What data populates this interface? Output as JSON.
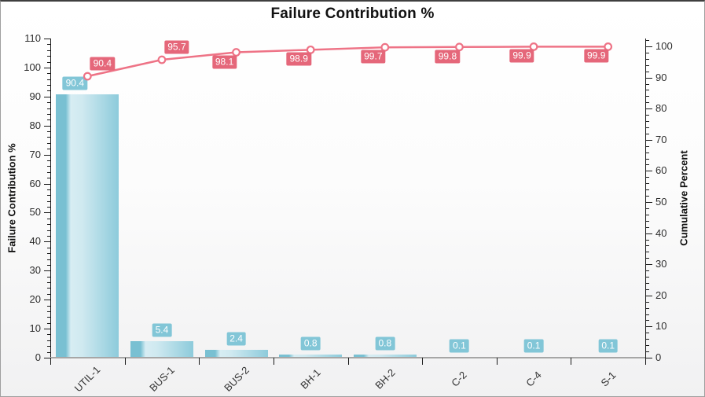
{
  "chart_data": {
    "type": "bar",
    "subtype": "pareto (bars + cumulative line)",
    "title": "Failure Contribution %",
    "categories": [
      "UTIL-1",
      "BUS-1",
      "BUS-2",
      "BH-1",
      "BH-2",
      "C-2",
      "C-4",
      "S-1"
    ],
    "series": [
      {
        "name": "Failure Contribution %",
        "type": "bar",
        "axis": "left",
        "values": [
          90.4,
          5.4,
          2.4,
          0.8,
          0.8,
          0.1,
          0.1,
          0.1
        ],
        "data_labels": [
          "90.4",
          "5.4",
          "2.4",
          "0.8",
          "0.8",
          "0.1",
          "0.1",
          "0.1"
        ]
      },
      {
        "name": "Cumulative Percent",
        "type": "line",
        "axis": "right",
        "values": [
          90.4,
          95.7,
          98.1,
          98.9,
          99.7,
          99.8,
          99.9,
          99.9
        ],
        "data_labels": [
          "90.4",
          "95.7",
          "98.1",
          "98.9",
          "99.7",
          "99.8",
          "99.9",
          "99.9"
        ]
      }
    ],
    "left_axis": {
      "label": "Failure Contribution %",
      "min": 0,
      "max": 110,
      "major_step": 10,
      "minor_step": 2,
      "major_ticks": [
        0,
        10,
        20,
        30,
        40,
        50,
        60,
        70,
        80,
        90,
        100,
        110
      ]
    },
    "right_axis": {
      "label": "Cumulative Percent",
      "min": 0,
      "max": 100,
      "major_step": 10,
      "minor_step": 2,
      "major_ticks": [
        0,
        10,
        20,
        30,
        40,
        50,
        60,
        70,
        80,
        90,
        100
      ]
    },
    "grid": false,
    "legend": "none",
    "colors": {
      "bar_dark": "#79c0d2",
      "bar_light": "#d7edf3",
      "bar_mid": "#8dcbdb",
      "bar_label_bg": "#82c6d7",
      "line": "#ee7386",
      "line_label_bg": "#e5677a",
      "marker_fill": "#ffffff",
      "axis": "#1a1a1a",
      "baseline": "#a6a6a6"
    }
  }
}
